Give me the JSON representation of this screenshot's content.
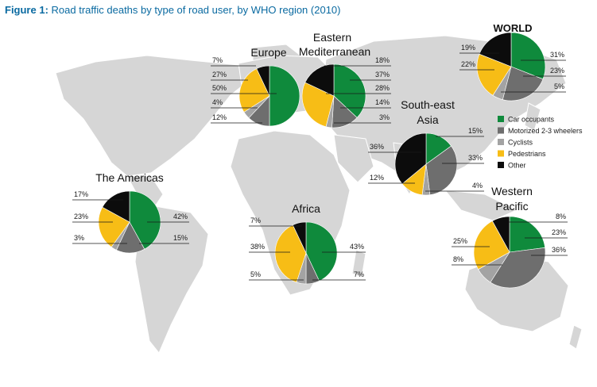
{
  "figure": {
    "label": "Figure 1:",
    "title": "Road traffic deaths by type of road user, by WHO region (2010)"
  },
  "colors": {
    "caption": "#0a6aa1",
    "land": "#d6d6d6",
    "Car occupants": "#0f8a3c",
    "Motorized 2-3 wheelers": "#6e6e6e",
    "Cyclists": "#a3a3a3",
    "Pedestrians": "#f7bd16",
    "Other": "#0c0c0c"
  },
  "chart_data": {
    "type": "pie",
    "categories": [
      "Car occupants",
      "Motorized 2-3 wheelers",
      "Cyclists",
      "Pedestrians",
      "Other"
    ],
    "legend": [
      "Car occupants",
      "Motorized 2-3 wheelers",
      "Cyclists",
      "Pedestrians",
      "Other"
    ],
    "legend_position": "right",
    "regions": [
      {
        "name": "WORLD",
        "values": [
          31,
          23,
          5,
          22,
          19
        ]
      },
      {
        "name": "Europe",
        "values": [
          50,
          12,
          4,
          27,
          7
        ]
      },
      {
        "name": "Eastern Mediterranean",
        "values": [
          37,
          14,
          3,
          28,
          18
        ]
      },
      {
        "name": "South-east Asia",
        "values": [
          15,
          33,
          4,
          12,
          36
        ]
      },
      {
        "name": "The Americas",
        "values": [
          42,
          15,
          3,
          23,
          17
        ]
      },
      {
        "name": "Africa",
        "values": [
          43,
          7,
          5,
          38,
          7
        ]
      },
      {
        "name": "Western Pacific",
        "values": [
          23,
          36,
          8,
          25,
          8
        ]
      }
    ]
  }
}
